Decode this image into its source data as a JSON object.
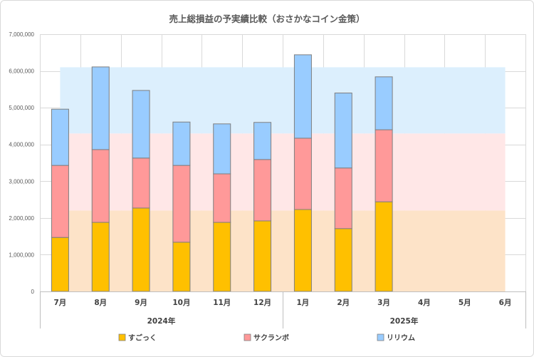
{
  "chart_data": {
    "type": "bar",
    "stacked": true,
    "title": "売上総損益の予実績比較（おさかなコイン金策）",
    "xlabel": "",
    "ylabel": "",
    "categories": [
      "7月",
      "8月",
      "9月",
      "10月",
      "11月",
      "12月",
      "1月",
      "2月",
      "3月",
      "4月",
      "5月",
      "6月"
    ],
    "category_groups": [
      {
        "label": "2024年",
        "span": 6
      },
      {
        "label": "2025年",
        "span": 6
      }
    ],
    "ylim": [
      0,
      7000000
    ],
    "yticks": [
      {
        "value": 0,
        "label": "0"
      },
      {
        "value": 1000000,
        "label": "1,000,000"
      },
      {
        "value": 2000000,
        "label": "2,000,000"
      },
      {
        "value": 3000000,
        "label": "3,000,000"
      },
      {
        "value": 4000000,
        "label": "4,000,000"
      },
      {
        "value": 5000000,
        "label": "5,000,000"
      },
      {
        "value": 6000000,
        "label": "6,000,000"
      },
      {
        "value": 7000000,
        "label": "7,000,000"
      }
    ],
    "series": [
      {
        "name": "すごっく",
        "color": "#FFC000",
        "values": [
          1470000,
          1880000,
          2270000,
          1340000,
          1880000,
          1920000,
          2230000,
          1710000,
          2440000,
          null,
          null,
          null
        ]
      },
      {
        "name": "サクランボ",
        "color": "#FF9999",
        "values": [
          1960000,
          1980000,
          1360000,
          2090000,
          1320000,
          1670000,
          1940000,
          1650000,
          1960000,
          null,
          null,
          null
        ]
      },
      {
        "name": "リリウム",
        "color": "#99CCFF",
        "values": [
          1530000,
          2250000,
          1840000,
          1180000,
          1360000,
          1010000,
          2270000,
          2040000,
          1440000,
          null,
          null,
          null
        ]
      }
    ],
    "bands": [
      {
        "from": 0,
        "to": 2200000,
        "color": "#FDE3C8",
        "start_index": 0,
        "end_index": 11
      },
      {
        "from": 2200000,
        "to": 4300000,
        "color": "#FFE7E7",
        "start_index": 0,
        "end_index": 11
      },
      {
        "from": 4300000,
        "to": 6100000,
        "color": "#DCEFFD",
        "start_index": 0,
        "end_index": 11
      }
    ]
  }
}
